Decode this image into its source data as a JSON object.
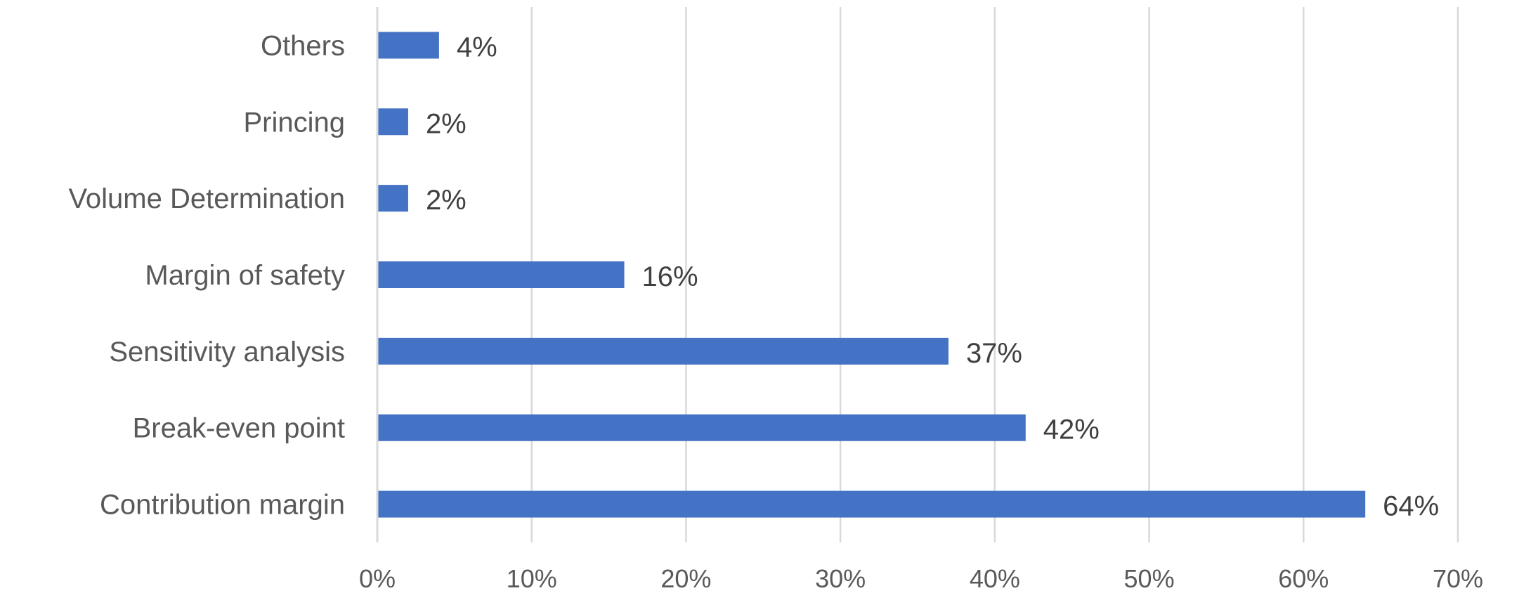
{
  "chart_data": {
    "type": "bar",
    "orientation": "horizontal",
    "title": "",
    "xlabel": "",
    "ylabel": "",
    "categories": [
      "Contribution margin",
      "Break-even point",
      "Sensitivity analysis",
      "Margin of safety",
      "Volume Determination",
      "Princing",
      "Others"
    ],
    "values": [
      64,
      42,
      37,
      16,
      2,
      2,
      4
    ],
    "data_labels": [
      "64%",
      "42%",
      "37%",
      "16%",
      "2%",
      "2%",
      "4%"
    ],
    "xlim": [
      0,
      70
    ],
    "x_ticks": [
      0,
      10,
      20,
      30,
      40,
      50,
      60,
      70
    ],
    "x_tick_labels": [
      "0%",
      "10%",
      "20%",
      "30%",
      "40%",
      "50%",
      "60%",
      "70%"
    ],
    "grid": "vertical",
    "legend": "none",
    "colors": {
      "bar": "#4472C4",
      "grid": "#D9D9D9",
      "axis": "#D9D9D9",
      "category_text": "#595959",
      "tick_text": "#595959",
      "data_label_text": "#404040"
    }
  }
}
